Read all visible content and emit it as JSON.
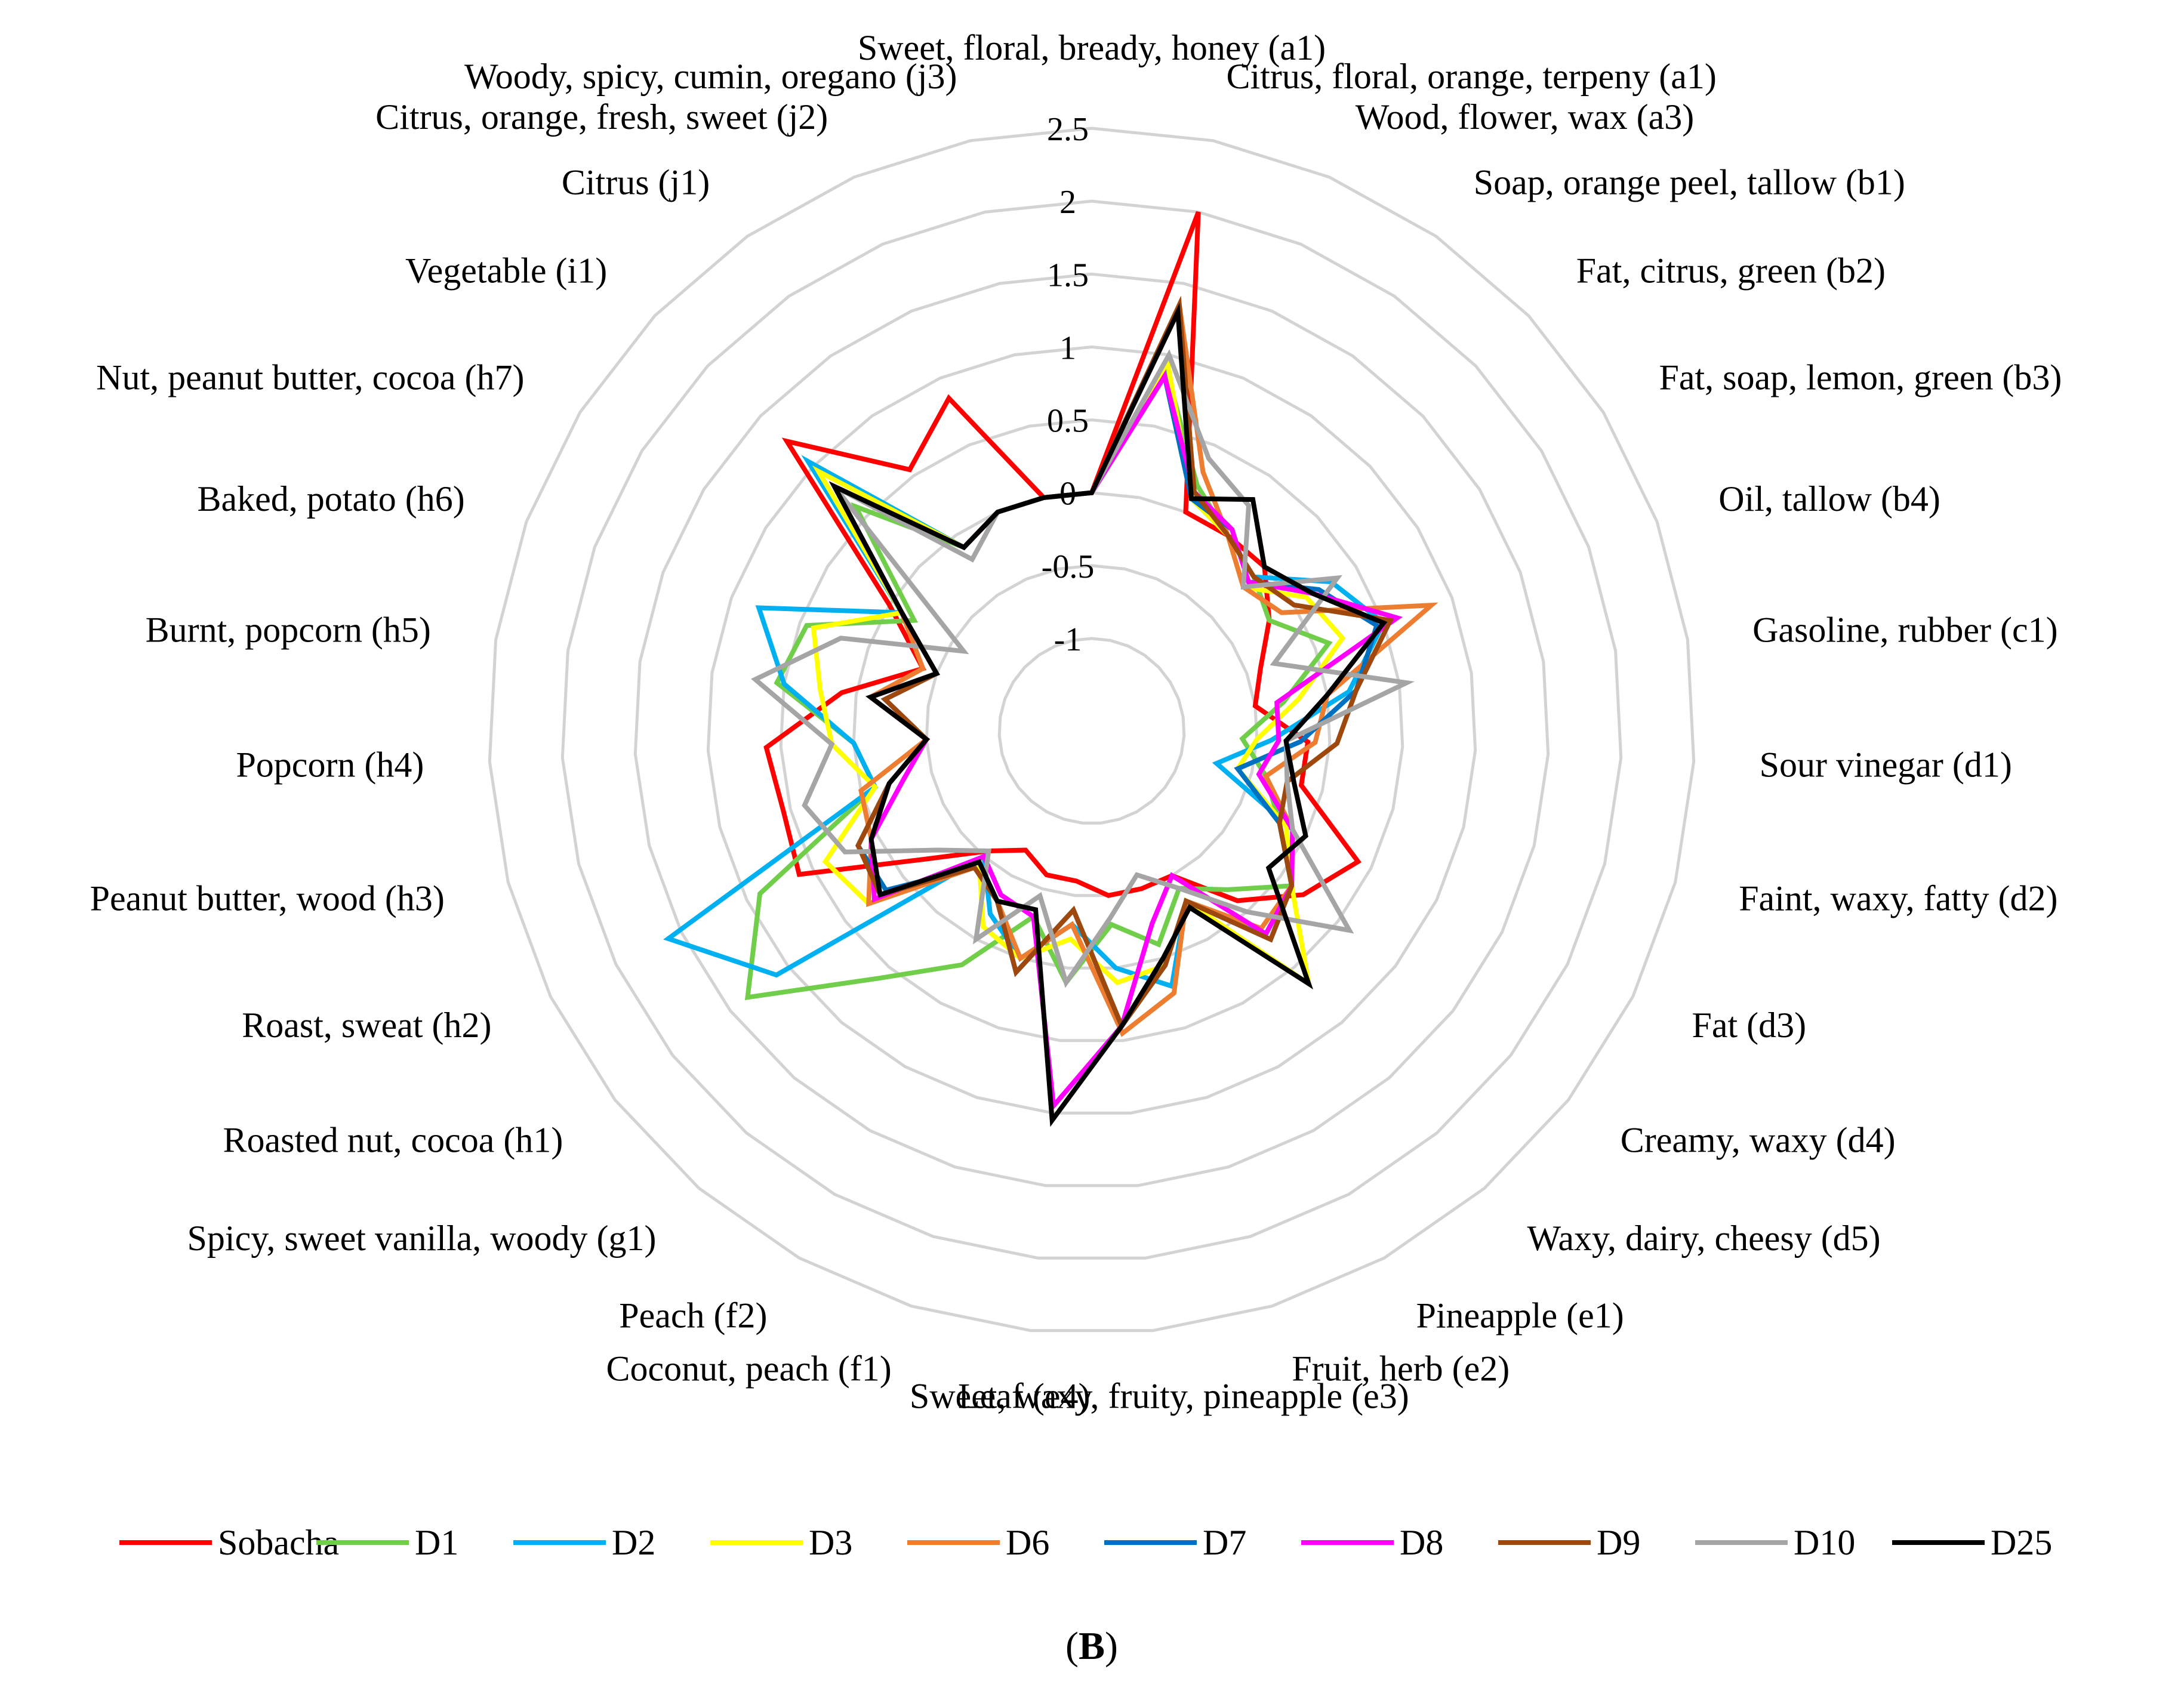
{
  "panel_label": "B",
  "chart_data": {
    "type": "radar",
    "rlim": [
      -1,
      2.5
    ],
    "ticks": [
      "-1",
      "-0.5",
      "0",
      "0.5",
      "1",
      "1.5",
      "2",
      "2.5"
    ],
    "categories": [
      "Sweet, floral, bready, honey (a1)",
      "Citrus, floral, orange, terpeny (a1)",
      "Wood, flower, wax (a3)",
      "Soap, orange peel, tallow (b1)",
      "Fat, citrus, green (b2)",
      "Fat, soap, lemon, green (b3)",
      "Oil, tallow (b4)",
      "Gasoline, rubber (c1)",
      "Sour vinegar (d1)",
      "Faint, waxy, fatty (d2)",
      "Fat (d3)",
      "Creamy, waxy (d4)",
      "Waxy, dairy, cheesy (d5)",
      "Pineapple (e1)",
      "Fruit, herb (e2)",
      "Sweet, waxy, fruity, pineapple (e3)",
      "Leaf (e4)",
      "Coconut, peach (f1)",
      "Peach (f2)",
      "Spicy, sweet vanilla, woody (g1)",
      "Roasted nut, cocoa (h1)",
      "Roast, sweat (h2)",
      "Peanut butter, wood (h3)",
      "Popcorn (h4)",
      "Burnt, popcorn (h5)",
      "Baked, potato (h6)",
      "Nut, peanut butter, cocoa (h7)",
      "Vegetable (i1)",
      "Citrus (j1)",
      "Citrus, orange, fresh, sweet (j2)",
      "Woody, spicy, cumin, oregano (j3)"
    ],
    "series": [
      {
        "name": "Sobacha",
        "color": "#ff0000",
        "values": [
          0,
          2.0,
          0,
          0,
          0,
          -0.2,
          -0.4,
          -0.5,
          -0.15,
          -0.15,
          0.4,
          0.2,
          -0.1,
          -0.5,
          -0.5,
          -0.5,
          -0.6,
          -0.6,
          -0.7,
          -0.55,
          -0.2,
          0.6,
          0.55,
          0.6,
          0.1,
          -0.4,
          0,
          1.25,
          0.55,
          0.85,
          0
        ]
      },
      {
        "name": "D1",
        "color": "#70ce4b",
        "values": [
          0,
          0.9,
          0.2,
          0,
          -0.1,
          -0.2,
          0.1,
          -0.3,
          -0.6,
          -0.4,
          -0.2,
          0.1,
          -0.2,
          -0.4,
          -0.1,
          -0.3,
          0.1,
          -0.3,
          0.2,
          0.6,
          1.35,
          0.9,
          -0.1,
          0,
          0.55,
          0.45,
          -0.2,
          0.6,
          -0.1,
          0,
          0
        ]
      },
      {
        "name": "D2",
        "color": "#00b0f0",
        "values": [
          0,
          0.85,
          0.1,
          0,
          -0.1,
          0.3,
          0.5,
          0.15,
          -0.4,
          -0.75,
          -0.1,
          0.1,
          0.2,
          -0.3,
          0.2,
          0.0,
          -0.3,
          0,
          -0.2,
          -0.5,
          1.1,
          1.6,
          -0.1,
          0,
          0.5,
          0.8,
          -0.1,
          1.05,
          -0.1,
          0,
          0
        ]
      },
      {
        "name": "D3",
        "color": "#ffff00",
        "values": [
          0,
          0.95,
          0.1,
          0,
          -0.2,
          0.1,
          0.2,
          -0.2,
          -0.5,
          -0.6,
          -0.15,
          0.1,
          0.65,
          -0.3,
          0.05,
          0.1,
          -0.2,
          0,
          -0.1,
          -0.45,
          0.3,
          0.4,
          -0.1,
          0.15,
          0.25,
          0.4,
          -0.1,
          0.95,
          -0.1,
          0,
          0
        ]
      },
      {
        "name": "D6",
        "color": "#ed7d31",
        "values": [
          0,
          1.35,
          0.3,
          0,
          -0.2,
          -0.1,
          0.85,
          0,
          -0.1,
          -0.4,
          -0.1,
          0.1,
          0.15,
          -0.3,
          0.25,
          0.45,
          -0.3,
          0,
          -0.3,
          -0.4,
          0.3,
          0.05,
          0,
          -0.5,
          -0.1,
          -0.4,
          -0.1,
          0.8,
          -0.1,
          0,
          0
        ]
      },
      {
        "name": "D7",
        "color": "#0070c0",
        "values": [
          0,
          0.85,
          0.1,
          0.05,
          -0.15,
          0.2,
          0.45,
          0.2,
          -0.2,
          -0.6,
          -0.2,
          0.1,
          0.25,
          -0.3,
          0.05,
          0.4,
          -0.4,
          0.1,
          -0.3,
          -0.4,
          0.15,
          0.15,
          -0.2,
          -0.5,
          -0.2,
          -0.5,
          -0.1,
          0.8,
          -0.1,
          0,
          0
        ]
      },
      {
        "name": "D8",
        "color": "#ff00ff",
        "values": [
          0,
          0.85,
          0.15,
          0.05,
          -0.15,
          0.15,
          0.6,
          -0.35,
          -0.35,
          -0.45,
          -0.1,
          0.1,
          0.2,
          -0.5,
          -0.25,
          0.4,
          0.95,
          -0.3,
          -0.35,
          -0.5,
          0.25,
          0.05,
          -0.3,
          -0.5,
          -0.1,
          -0.5,
          -0.1,
          0.8,
          -0.1,
          0,
          0
        ]
      },
      {
        "name": "D9",
        "color": "#9e480e",
        "values": [
          0,
          1.35,
          0.15,
          0,
          -0.1,
          0.0,
          0.55,
          0.2,
          0.05,
          -0.25,
          -0.2,
          0.1,
          0.25,
          -0.3,
          0.05,
          0.4,
          -0.4,
          0.1,
          -0.3,
          -0.4,
          0.2,
          0.15,
          -0.2,
          -0.5,
          -0.2,
          -0.5,
          -0.1,
          0.8,
          -0.1,
          0,
          0
        ]
      },
      {
        "name": "D10",
        "color": "#a5a5a5",
        "values": [
          0,
          1.0,
          0.4,
          0.25,
          -0.2,
          0.35,
          -0.3,
          0.55,
          -0.3,
          -0.25,
          -0.1,
          0.6,
          0.0,
          -0.4,
          -0.6,
          -0.35,
          0.1,
          -0.45,
          0.0,
          -0.55,
          -0.3,
          0.25,
          0.4,
          0.15,
          0.7,
          0.2,
          -0.6,
          0.8,
          -0.2,
          0,
          0
        ]
      },
      {
        "name": "D25",
        "color": "#000000",
        "values": [
          0,
          1.3,
          0.1,
          0.3,
          0,
          0.15,
          0.5,
          0.0,
          -0.3,
          -0.2,
          0.0,
          -0.1,
          0.65,
          -0.25,
          0.0,
          0.4,
          1.05,
          -0.35,
          -0.3,
          -0.45,
          0.2,
          0.05,
          -0.2,
          -0.5,
          -0.1,
          -0.5,
          -0.1,
          0.8,
          -0.1,
          0,
          0
        ]
      }
    ],
    "legend_position": "bottom",
    "grid": true
  }
}
